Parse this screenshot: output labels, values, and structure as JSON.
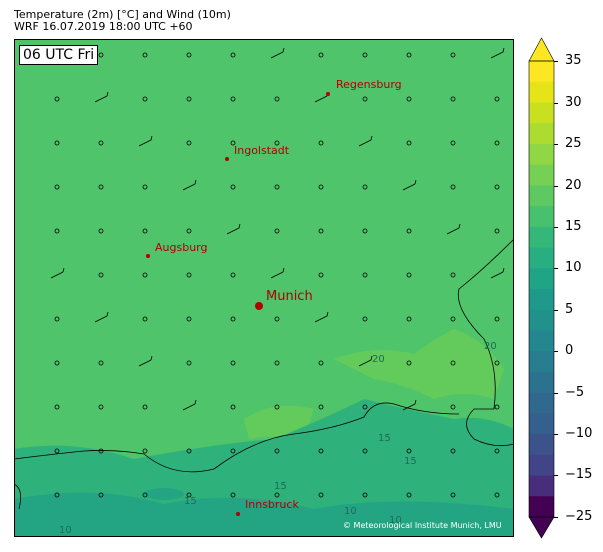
{
  "header": {
    "title": "Temperature (2m) [°C] and Wind (10m)",
    "subtitle": "WRF 16.07.2019 18:00 UTC +60"
  },
  "map": {
    "time_label": "06 UTC Fri",
    "cities": [
      {
        "name": "Regensburg",
        "major": false
      },
      {
        "name": "Ingolstadt",
        "major": false
      },
      {
        "name": "Augsburg",
        "major": false
      },
      {
        "name": "Munich",
        "major": true
      },
      {
        "name": "Innsbruck",
        "major": false
      }
    ],
    "contour_labels": [
      "20",
      "20",
      "15",
      "15",
      "15",
      "10",
      "10",
      "10",
      "15"
    ],
    "copyright": "© Meteorological Institute Munich, LMU"
  },
  "colorbar": {
    "ticks": [
      "35",
      "30",
      "25",
      "20",
      "15",
      "10",
      "5",
      "0",
      "−5",
      "−10",
      "−15",
      "−25"
    ],
    "colors": [
      "#fde725",
      "#e5e419",
      "#c8e020",
      "#addc30",
      "#8fd744",
      "#75d054",
      "#5ec962",
      "#48c16e",
      "#35b779",
      "#28ae80",
      "#20a486",
      "#1f9a8a",
      "#21918c",
      "#24878e",
      "#287d8e",
      "#2c728e",
      "#31688e",
      "#355f8d",
      "#3b528b",
      "#414487",
      "#472d7b",
      "#440154"
    ]
  }
}
